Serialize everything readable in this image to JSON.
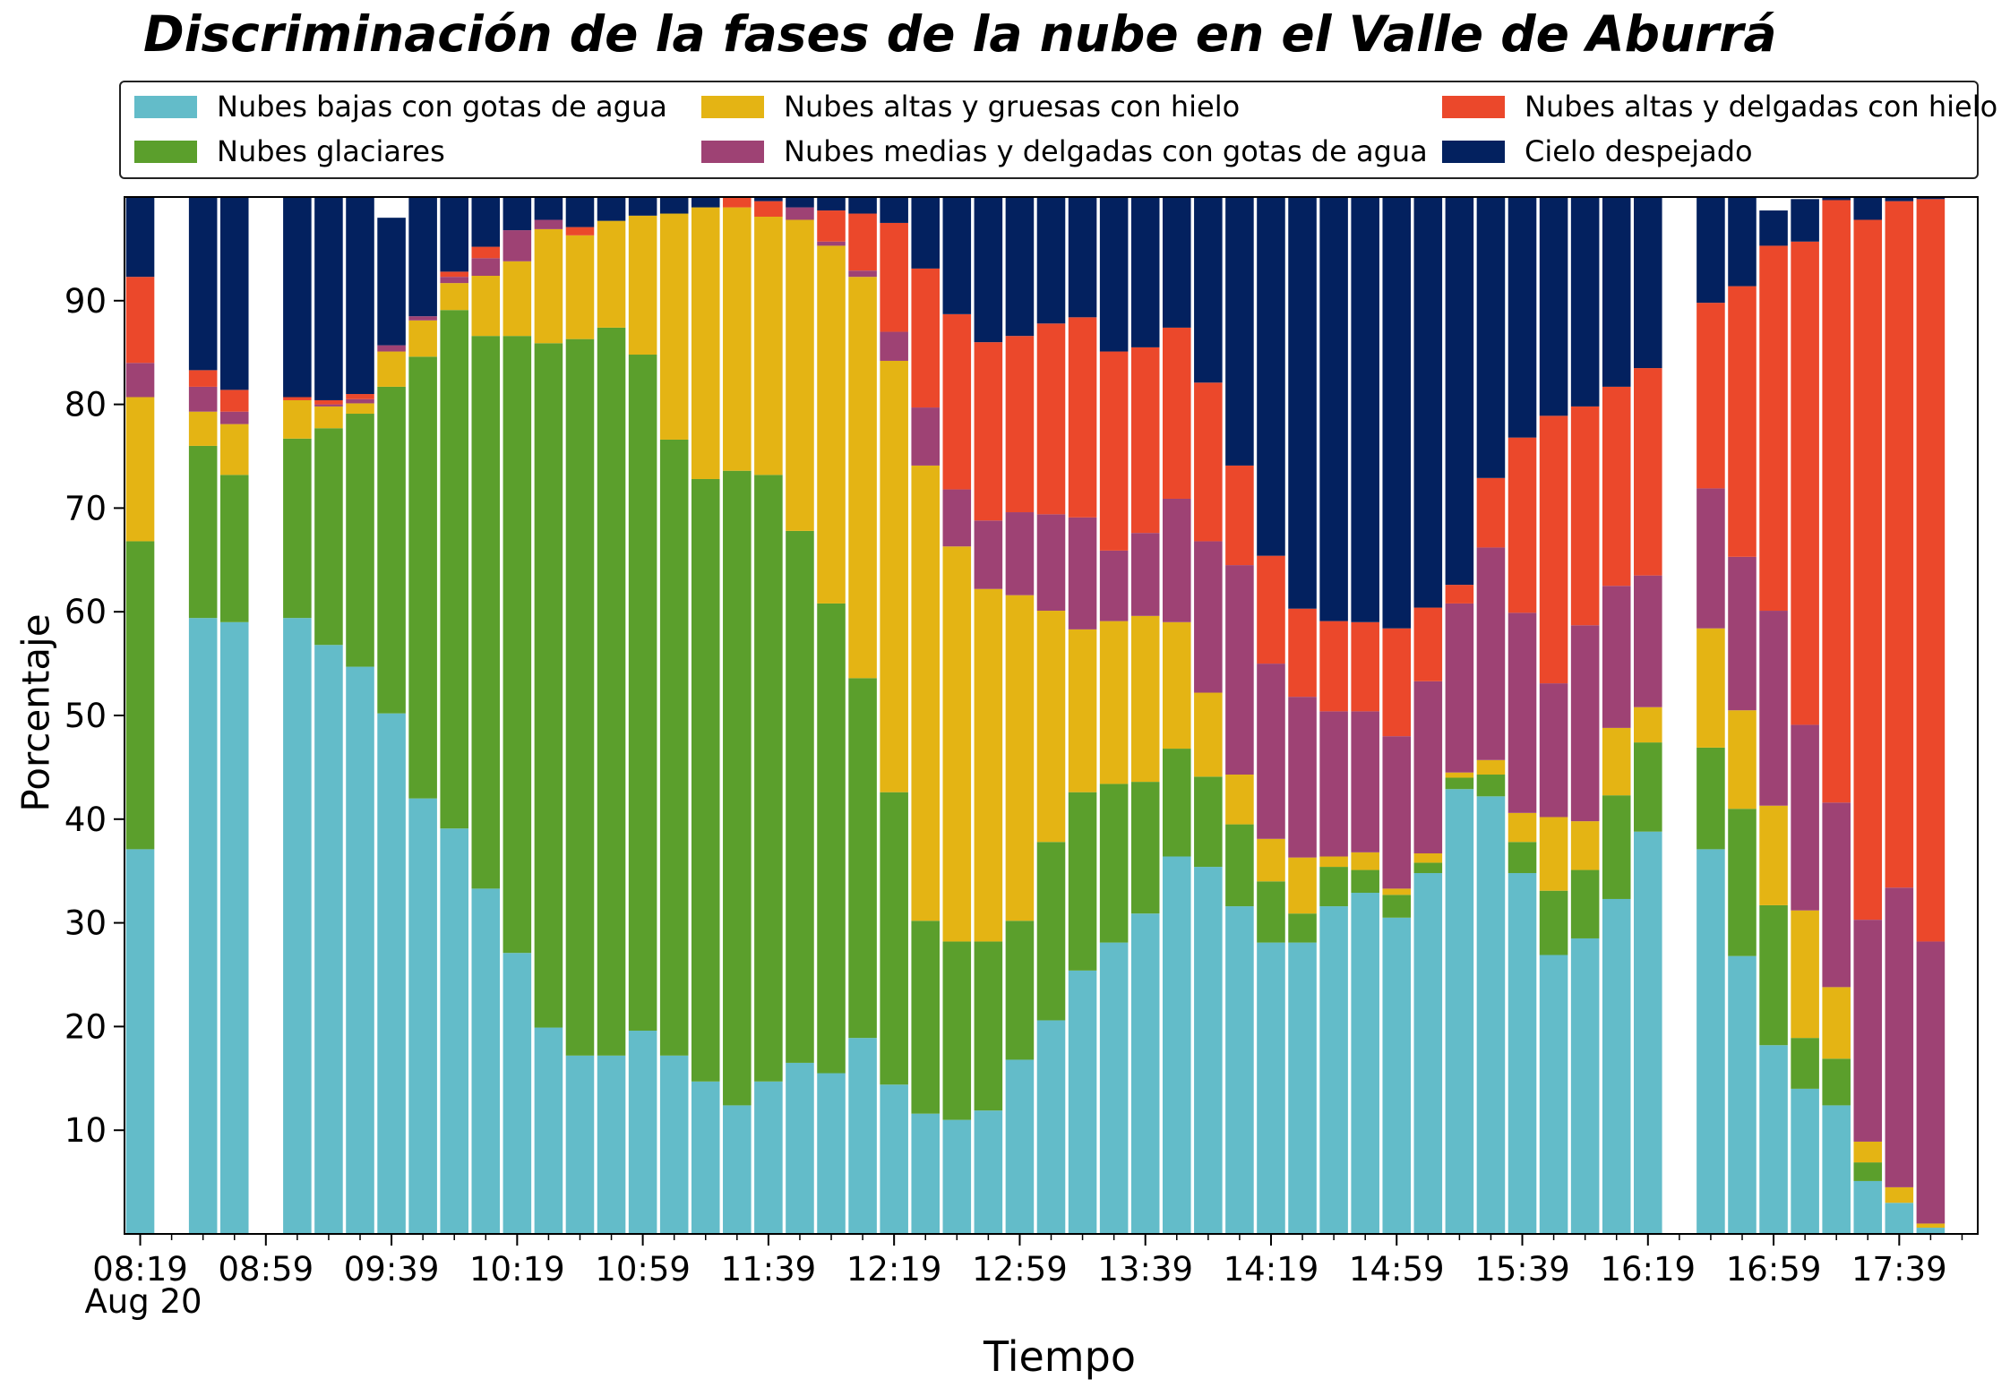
{
  "chart_data": {
    "type": "bar",
    "stacked": true,
    "title": "Discriminación de la fases de la nube en el Valle de Aburrá",
    "xlabel": "Tiempo",
    "ylabel": "Porcentaje",
    "ylim": [
      0,
      100
    ],
    "yticks": [
      10,
      20,
      30,
      40,
      50,
      60,
      70,
      80,
      90
    ],
    "x_range": [
      "08:14",
      "18:04"
    ],
    "xtick_labels": [
      "08:19",
      "08:59",
      "09:39",
      "10:19",
      "10:59",
      "11:39",
      "12:19",
      "12:59",
      "13:39",
      "14:19",
      "14:59",
      "15:39",
      "16:19",
      "16:59",
      "17:39"
    ],
    "date_label": "Aug 20",
    "legend_position": "top",
    "grid": false,
    "categories": [
      "08:19",
      "08:29",
      "08:39",
      "08:49",
      "08:59",
      "09:09",
      "09:19",
      "09:29",
      "09:39",
      "09:49",
      "09:59",
      "10:09",
      "10:19",
      "10:29",
      "10:39",
      "10:49",
      "10:59",
      "11:09",
      "11:19",
      "11:29",
      "11:39",
      "11:49",
      "11:59",
      "12:09",
      "12:19",
      "12:29",
      "12:39",
      "12:49",
      "12:59",
      "13:09",
      "13:19",
      "13:29",
      "13:39",
      "13:49",
      "13:59",
      "14:09",
      "14:19",
      "14:29",
      "14:39",
      "14:49",
      "14:59",
      "15:09",
      "15:19",
      "15:29",
      "15:39",
      "15:49",
      "15:59",
      "16:09",
      "16:19",
      "16:29",
      "16:39",
      "16:49",
      "16:59",
      "17:09",
      "17:19",
      "17:29",
      "17:39",
      "17:49",
      "17:59"
    ],
    "series": [
      {
        "name": "Nubes bajas con gotas de agua",
        "color": "#63BCC9",
        "values": [
          37.1,
          null,
          59.4,
          59.0,
          null,
          59.4,
          56.8,
          54.7,
          50.2,
          42.0,
          39.1,
          33.3,
          27.1,
          19.9,
          17.2,
          17.2,
          19.6,
          17.2,
          14.7,
          12.4,
          14.7,
          16.5,
          15.5,
          18.9,
          14.4,
          11.6,
          11.0,
          11.9,
          16.8,
          20.6,
          25.4,
          28.1,
          30.9,
          36.4,
          35.4,
          31.6,
          28.1,
          28.1,
          31.6,
          32.9,
          30.5,
          34.8,
          42.9,
          42.2,
          34.8,
          26.9,
          28.5,
          32.3,
          38.8,
          null,
          37.1,
          26.8,
          18.2,
          14.0,
          12.4,
          5.1,
          3.0,
          0.6,
          null
        ]
      },
      {
        "name": "Nubes glaciares",
        "color": "#5B9F2C",
        "values": [
          29.7,
          null,
          16.6,
          14.2,
          null,
          17.3,
          20.9,
          24.4,
          31.5,
          42.6,
          50.0,
          53.3,
          59.5,
          66.0,
          69.1,
          70.2,
          65.2,
          59.4,
          58.1,
          61.2,
          58.5,
          51.3,
          45.3,
          34.7,
          28.2,
          18.6,
          17.2,
          16.3,
          13.4,
          17.2,
          17.2,
          15.3,
          12.7,
          10.4,
          8.7,
          7.9,
          5.9,
          2.8,
          3.8,
          2.2,
          2.2,
          1.0,
          1.1,
          2.1,
          3.0,
          6.2,
          6.6,
          10.0,
          8.6,
          null,
          9.8,
          14.2,
          13.5,
          4.9,
          4.5,
          1.8,
          null,
          null,
          null
        ]
      },
      {
        "name": "Nubes altas y gruesas con hielo",
        "color": "#E4B414",
        "values": [
          13.9,
          null,
          3.3,
          4.9,
          null,
          3.7,
          2.1,
          1.0,
          3.4,
          3.5,
          2.6,
          5.8,
          7.2,
          11.0,
          10.0,
          10.3,
          13.4,
          21.8,
          26.2,
          25.4,
          24.9,
          30.0,
          34.5,
          38.7,
          41.6,
          43.9,
          38.1,
          34.0,
          31.4,
          22.3,
          15.7,
          15.7,
          16.0,
          12.2,
          8.1,
          4.8,
          4.1,
          5.4,
          1.0,
          1.7,
          0.6,
          0.9,
          0.5,
          1.4,
          2.8,
          7.1,
          4.7,
          6.5,
          3.4,
          null,
          11.5,
          9.5,
          9.6,
          12.3,
          6.9,
          2.0,
          1.5,
          0.4,
          null
        ]
      },
      {
        "name": "Nubes medias y delgadas con gotas de agua",
        "color": "#9E4274",
        "values": [
          3.3,
          null,
          2.4,
          1.2,
          null,
          null,
          0.2,
          0.4,
          0.6,
          0.4,
          0.6,
          1.7,
          3.0,
          0.9,
          null,
          null,
          null,
          null,
          null,
          null,
          null,
          1.2,
          0.4,
          0.6,
          2.8,
          5.6,
          5.5,
          6.6,
          8.0,
          9.3,
          10.8,
          6.8,
          8.0,
          11.9,
          14.6,
          20.2,
          16.9,
          15.5,
          14.0,
          13.6,
          14.7,
          16.6,
          16.3,
          20.5,
          19.3,
          12.9,
          18.9,
          13.7,
          12.7,
          null,
          13.5,
          14.8,
          18.8,
          17.9,
          17.8,
          21.4,
          28.9,
          27.2,
          null
        ]
      },
      {
        "name": "Nubes altas y delgadas con hielo",
        "color": "#EB482B",
        "values": [
          8.3,
          null,
          1.6,
          2.1,
          null,
          0.3,
          0.4,
          0.5,
          null,
          null,
          0.5,
          1.1,
          null,
          null,
          0.8,
          null,
          null,
          null,
          null,
          1.2,
          1.5,
          null,
          3.0,
          5.5,
          10.5,
          13.4,
          16.9,
          17.2,
          17.0,
          18.4,
          19.3,
          19.2,
          17.9,
          16.5,
          15.3,
          9.6,
          10.4,
          8.5,
          8.7,
          8.6,
          10.4,
          7.1,
          1.8,
          6.7,
          16.9,
          25.8,
          21.1,
          19.2,
          20.0,
          null,
          17.9,
          26.1,
          35.2,
          46.6,
          58.1,
          67.5,
          66.2,
          71.6,
          null
        ]
      },
      {
        "name": "Cielo despejado",
        "color": "#03215F",
        "values": [
          7.7,
          null,
          16.7,
          18.6,
          null,
          19.3,
          19.6,
          19.0,
          12.3,
          11.5,
          7.2,
          4.8,
          3.2,
          2.2,
          2.9,
          2.3,
          1.8,
          1.6,
          1.0,
          null,
          0.4,
          1.0,
          1.3,
          1.6,
          2.5,
          6.9,
          11.3,
          14.0,
          13.4,
          12.2,
          11.6,
          14.9,
          14.5,
          12.6,
          17.9,
          25.9,
          34.6,
          39.7,
          40.9,
          41.3,
          42.3,
          39.6,
          37.4,
          27.1,
          23.2,
          21.1,
          20.2,
          18.3,
          16.5,
          null,
          10.2,
          8.6,
          3.4,
          4.1,
          0.3,
          2.2,
          0.4,
          0.2,
          null
        ]
      }
    ]
  }
}
